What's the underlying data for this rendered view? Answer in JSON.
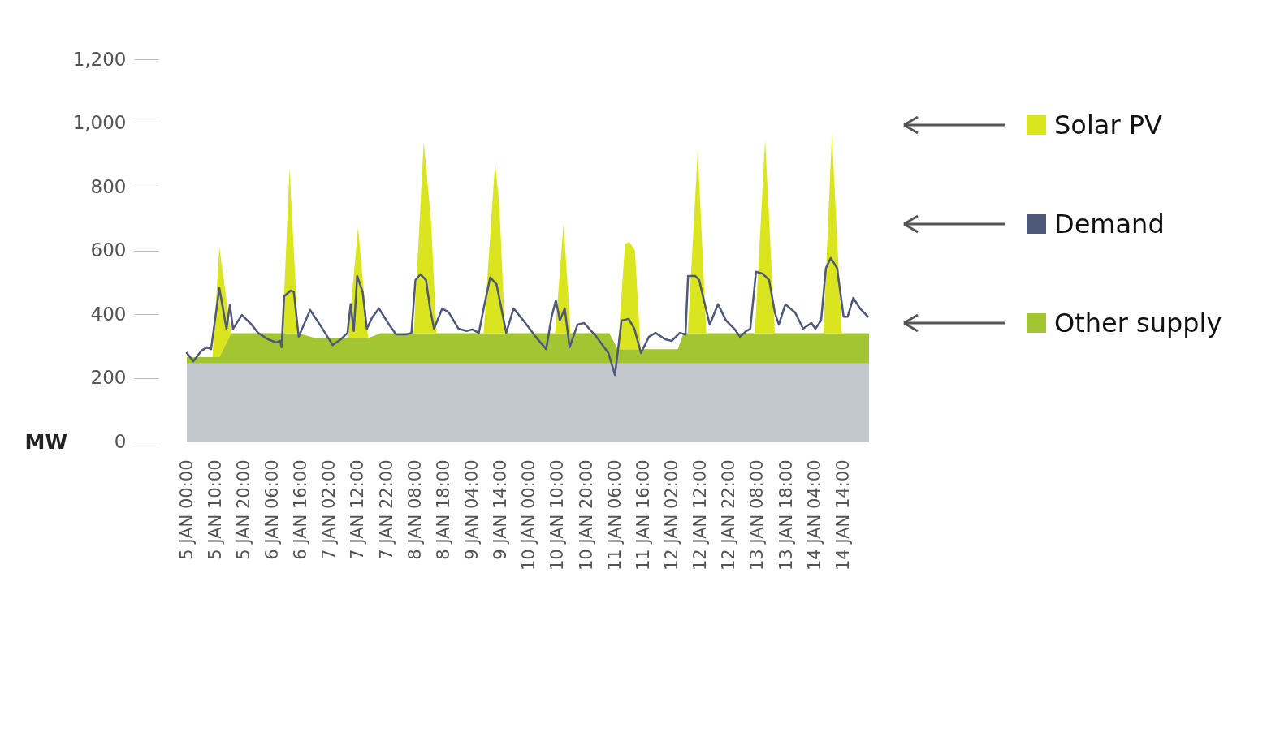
{
  "chart_data": {
    "type": "area",
    "ylabel": "MW",
    "stacked": true,
    "legend": "right",
    "xlim": [
      "--01-05T00:00",
      "--01-14T23:00"
    ],
    "xticks": [
      {
        "value": "--01-05T00:00",
        "label": "5 JAN 00:00"
      },
      {
        "value": "--01-05T10:00",
        "label": "5 JAN 10:00"
      },
      {
        "value": "--01-05T20:00",
        "label": "5 JAN 20:00"
      },
      {
        "value": "--01-06T06:00",
        "label": "6 JAN 06:00"
      },
      {
        "value": "--01-06T16:00",
        "label": "6 JAN 16:00"
      },
      {
        "value": "--01-07T02:00",
        "label": "7 JAN 02:00"
      },
      {
        "value": "--01-07T12:00",
        "label": "7 JAN 12:00"
      },
      {
        "value": "--01-07T22:00",
        "label": "7 JAN 22:00"
      },
      {
        "value": "--01-08T08:00",
        "label": "8 JAN 08:00"
      },
      {
        "value": "--01-08T18:00",
        "label": "8 JAN 18:00"
      },
      {
        "value": "--01-09T04:00",
        "label": "9 JAN 04:00"
      },
      {
        "value": "--01-09T14:00",
        "label": "9 JAN 14:00"
      },
      {
        "value": "--01-10T00:00",
        "label": "10 JAN 00:00"
      },
      {
        "value": "--01-10T10:00",
        "label": "10 JAN 10:00"
      },
      {
        "value": "--01-10T20:00",
        "label": "10 JAN 20:00"
      },
      {
        "value": "--01-11T06:00",
        "label": "11 JAN 06:00"
      },
      {
        "value": "--01-11T16:00",
        "label": "11 JAN 16:00"
      },
      {
        "value": "--01-12T02:00",
        "label": "12 JAN 02:00"
      },
      {
        "value": "--01-12T12:00",
        "label": "12 JAN 12:00"
      },
      {
        "value": "--01-12T22:00",
        "label": "12 JAN 22:00"
      },
      {
        "value": "--01-13T08:00",
        "label": "13 JAN 08:00"
      },
      {
        "value": "--01-13T18:00",
        "label": "13 JAN 18:00"
      },
      {
        "value": "--01-14T04:00",
        "label": "14 JAN 04:00"
      },
      {
        "value": "--01-14T14:00",
        "label": "14 JAN 14:00"
      }
    ],
    "ylim": [
      0,
      1200
    ],
    "yticks": [
      0,
      200,
      400,
      600,
      800,
      {
        "value": 1000,
        "label": "1,000"
      },
      {
        "value": 1200,
        "label": "1,200"
      }
    ],
    "x": [
      "--01-05T00:00",
      "--01-05T08:00",
      "--01-05T09:00",
      "--01-05T11:24",
      "--01-05T15:30",
      "--01-06T09:30",
      "--01-06T12:00",
      "--01-06T15:00",
      "--01-06T21:00",
      "--01-07T08:30",
      "--01-07T12:00",
      "--01-07T15:30",
      "--01-07T20:00",
      "--01-08T07:30",
      "--01-08T11:00",
      "--01-08T13:30",
      "--01-08T15:30",
      "--01-09T08:00",
      "--01-09T12:00",
      "--01-09T13:30",
      "--01-09T15:30",
      "--01-10T09:00",
      "--01-10T12:00",
      "--01-10T14:30",
      "--01-11T04:00",
      "--01-11T07:00",
      "--01-11T09:30",
      "--01-11T11:00",
      "--01-11T13:00",
      "--01-11T15:00",
      "--01-12T04:00",
      "--01-12T06:00",
      "--01-12T07:30",
      "--01-12T11:00",
      "--01-12T14:00",
      "--01-13T07:00",
      "--01-13T10:36",
      "--01-13T14:00",
      "--01-14T07:00",
      "--01-14T10:00",
      "--01-14T13:30",
      "--01-14T23:00"
    ],
    "series": [
      {
        "color": "#c3c8ce",
        "values": [
          245,
          245,
          245,
          245,
          245,
          245,
          245,
          245,
          245,
          245,
          245,
          245,
          245,
          245,
          245,
          245,
          245,
          245,
          245,
          245,
          245,
          245,
          245,
          245,
          245,
          245,
          245,
          245,
          245,
          245,
          245,
          245,
          245,
          245,
          245,
          245,
          245,
          245,
          245,
          245,
          245,
          245
        ]
      },
      {
        "name": "Other supply",
        "color": "#a3c531",
        "values": [
          20,
          20,
          20,
          20,
          95,
          95,
          95,
          95,
          80,
          80,
          80,
          80,
          95,
          95,
          95,
          95,
          95,
          95,
          95,
          95,
          95,
          95,
          95,
          95,
          95,
          45,
          45,
          45,
          45,
          45,
          45,
          95,
          95,
          95,
          95,
          95,
          95,
          95,
          95,
          95,
          95,
          95
        ]
      },
      {
        "name": "Solar PV",
        "color": "#dbe51f",
        "values": [
          0,
          0,
          0,
          344,
          0,
          0,
          516,
          0,
          0,
          0,
          348,
          0,
          0,
          0,
          600,
          360,
          0,
          0,
          536,
          400,
          0,
          0,
          345,
          0,
          0,
          0,
          330,
          337,
          310,
          0,
          0,
          0,
          0,
          575,
          0,
          0,
          608,
          0,
          0,
          626,
          0,
          0
        ]
      },
      {
        "name": "Demand",
        "type": "line",
        "color": "#4e5878",
        "x": [
          "--01-05T00:00",
          "--01-05T02:18",
          "--01-05T05:06",
          "--01-05T07:06",
          "--01-05T08:30",
          "--01-05T11:24",
          "--01-05T13:54",
          "--01-05T15:06",
          "--01-05T16:12",
          "--01-05T19:18",
          "--01-05T22:42",
          "--01-06T01:00",
          "--01-06T04:24",
          "--01-06T07:18",
          "--01-06T08:42",
          "--01-06T09:12",
          "--01-06T10:06",
          "--01-06T12:24",
          "--01-06T13:30",
          "--01-06T15:12",
          "--01-06T19:12",
          "--01-06T23:12",
          "--01-07T03:06",
          "--01-07T06:00",
          "--01-07T08:18",
          "--01-07T09:24",
          "--01-07T10:30",
          "--01-07T11:42",
          "--01-07T13:36",
          "--01-07T15:06",
          "--01-07T16:48",
          "--01-07T19:18",
          "--01-07T22:30",
          "--01-08T01:18",
          "--01-08T04:42",
          "--01-08T06:42",
          "--01-08T08:06",
          "--01-08T09:48",
          "--01-08T11:48",
          "--01-08T13:12",
          "--01-08T14:36",
          "--01-08T17:30",
          "--01-08T19:48",
          "--01-08T23:12",
          "--01-09T02:00",
          "--01-09T04:00",
          "--01-09T06:18",
          "--01-09T08:00",
          "--01-09T10:18",
          "--01-09T12:30",
          "--01-09T14:12",
          "--01-09T15:54",
          "--01-09T18:30",
          "--01-09T21:54",
          "--01-10T02:12",
          "--01-10T05:54",
          "--01-10T07:48",
          "--01-10T09:18",
          "--01-10T10:42",
          "--01-10T12:24",
          "--01-10T14:06",
          "--01-10T16:54",
          "--01-10T19:12",
          "--01-10T23:30",
          "--01-11T03:42",
          "--01-11T06:00",
          "--01-11T08:18",
          "--01-11T10:48",
          "--01-11T12:48",
          "--01-11T15:06",
          "--01-11T17:54",
          "--01-11T20:12",
          "--01-11T23:36",
          "--01-12T01:54",
          "--01-12T04:42",
          "--01-12T06:42",
          "--01-12T07:36",
          "--01-12T10:06",
          "--01-12T11:30",
          "--01-12T13:18",
          "--01-12T15:12",
          "--01-12T18:06",
          "--01-12T20:54",
          "--01-12T23:48",
          "--01-13T01:48",
          "--01-13T04:00",
          "--01-13T05:24",
          "--01-13T07:24",
          "--01-13T09:42",
          "--01-13T12:00",
          "--01-13T14:00",
          "--01-13T15:24",
          "--01-13T17:42",
          "--01-13T21:06",
          "--01-13T23:54",
          "--01-14T02:48",
          "--01-14T04:12",
          "--01-14T06:12",
          "--01-14T07:54",
          "--01-14T09:36",
          "--01-14T11:48",
          "--01-14T14:06",
          "--01-14T15:30",
          "--01-14T17:30",
          "--01-14T19:48",
          "--01-14T22:36"
        ],
        "values": [
          278,
          252,
          285,
          296,
          290,
          482,
          354,
          428,
          354,
          397,
          367,
          341,
          321,
          311,
          316,
          296,
          456,
          474,
          469,
          329,
          413,
          359,
          303,
          321,
          341,
          431,
          347,
          520,
          469,
          354,
          387,
          418,
          372,
          336,
          336,
          341,
          507,
          525,
          507,
          418,
          354,
          418,
          405,
          354,
          347,
          352,
          341,
          418,
          515,
          494,
          418,
          341,
          418,
          380,
          329,
          290,
          392,
          443,
          380,
          418,
          296,
          367,
          372,
          329,
          278,
          209,
          380,
          385,
          354,
          278,
          329,
          341,
          321,
          316,
          341,
          336,
          520,
          520,
          507,
          438,
          367,
          431,
          380,
          354,
          329,
          347,
          354,
          533,
          527,
          507,
          405,
          367,
          431,
          405,
          354,
          372,
          354,
          380,
          545,
          576,
          545,
          392,
          392,
          451,
          418,
          392
        ]
      }
    ]
  }
}
